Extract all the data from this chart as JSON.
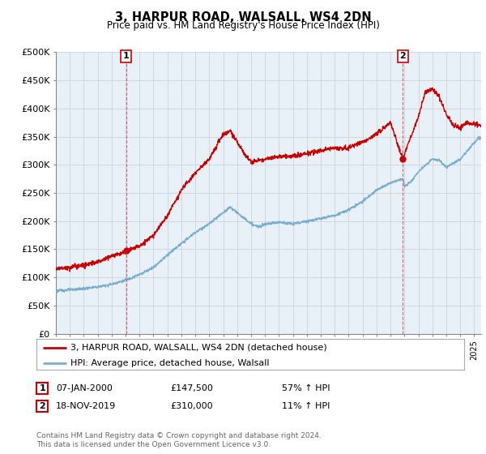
{
  "title": "3, HARPUR ROAD, WALSALL, WS4 2DN",
  "subtitle": "Price paid vs. HM Land Registry's House Price Index (HPI)",
  "ylabel_ticks": [
    "£0",
    "£50K",
    "£100K",
    "£150K",
    "£200K",
    "£250K",
    "£300K",
    "£350K",
    "£400K",
    "£450K",
    "£500K"
  ],
  "ylim": [
    0,
    500000
  ],
  "xlim_start": 1995.0,
  "xlim_end": 2025.5,
  "legend_line1": "3, HARPUR ROAD, WALSALL, WS4 2DN (detached house)",
  "legend_line2": "HPI: Average price, detached house, Walsall",
  "sale1_date": "07-JAN-2000",
  "sale1_price": 147500,
  "sale1_label": "1",
  "sale1_year": 2000.04,
  "sale2_date": "18-NOV-2019",
  "sale2_price": 310000,
  "sale2_label": "2",
  "sale2_year": 2019.88,
  "footnote": "Contains HM Land Registry data © Crown copyright and database right 2024.\nThis data is licensed under the Open Government Licence v3.0.",
  "line_color_red": "#cc0000",
  "line_color_blue": "#7aadd4",
  "grid_color": "#cccccc",
  "chart_bg": "#e8f0f8",
  "background_color": "#ffffff",
  "table_row1": [
    "1",
    "07-JAN-2000",
    "£147,500",
    "57% ↑ HPI"
  ],
  "table_row2": [
    "2",
    "18-NOV-2019",
    "£310,000",
    "11% ↑ HPI"
  ],
  "hpi_key_years": [
    1995,
    1996,
    1997,
    1998,
    1999,
    2000,
    2001,
    2002,
    2003,
    2004,
    2005,
    2006,
    2007,
    2007.5,
    2008,
    2009,
    2009.5,
    2010,
    2011,
    2012,
    2013,
    2014,
    2015,
    2016,
    2017,
    2018,
    2019,
    2019.88,
    2020,
    2020.5,
    2021,
    2022,
    2022.5,
    2023,
    2024,
    2025.3
  ],
  "hpi_key_values": [
    76000,
    78000,
    80000,
    83000,
    88000,
    95000,
    105000,
    118000,
    140000,
    160000,
    180000,
    195000,
    215000,
    225000,
    215000,
    195000,
    190000,
    195000,
    198000,
    195000,
    200000,
    205000,
    210000,
    220000,
    235000,
    255000,
    268000,
    275000,
    262000,
    270000,
    288000,
    310000,
    308000,
    295000,
    310000,
    348000
  ],
  "red_key_years": [
    1995,
    1996,
    1997,
    1998,
    1999,
    2000,
    2000.04,
    2001,
    2002,
    2003,
    2004,
    2005,
    2006,
    2007,
    2007.5,
    2008,
    2008.5,
    2009,
    2010,
    2011,
    2012,
    2013,
    2014,
    2015,
    2016,
    2017,
    2018,
    2019,
    2019.88,
    2020,
    2021,
    2021.5,
    2022,
    2022.5,
    2023,
    2023.5,
    2024,
    2024.5,
    2025.3
  ],
  "red_key_values": [
    115000,
    118000,
    122000,
    128000,
    138000,
    145000,
    147500,
    155000,
    175000,
    210000,
    255000,
    285000,
    310000,
    355000,
    360000,
    340000,
    320000,
    305000,
    310000,
    315000,
    315000,
    320000,
    325000,
    330000,
    330000,
    340000,
    355000,
    375000,
    310000,
    320000,
    385000,
    430000,
    435000,
    420000,
    390000,
    370000,
    365000,
    375000,
    370000
  ]
}
